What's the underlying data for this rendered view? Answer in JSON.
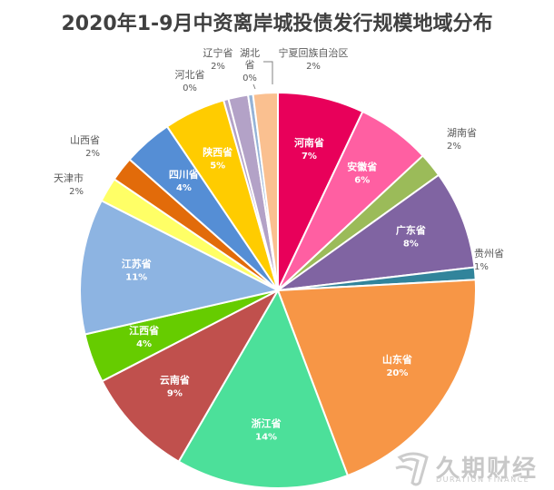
{
  "chart_data": {
    "type": "pie",
    "title": "2020年1-9月中资离岸城投债发行规模地域分布",
    "start_angle_deg": 0,
    "direction": "clockwise",
    "slices": [
      {
        "name": "河南省",
        "label": "7%",
        "value": 7,
        "color": "#E8005A",
        "label_inside": true
      },
      {
        "name": "安徽省",
        "label": "6%",
        "value": 6,
        "color": "#FF5FA2",
        "label_inside": true
      },
      {
        "name": "湖南省",
        "label": "2%",
        "value": 2,
        "color": "#9BBB59",
        "label_inside": false
      },
      {
        "name": "广东省",
        "label": "8%",
        "value": 8,
        "color": "#8064A2",
        "label_inside": true
      },
      {
        "name": "贵州省",
        "label": "1%",
        "value": 1,
        "color": "#31849B",
        "label_inside": false
      },
      {
        "name": "山东省",
        "label": "20%",
        "value": 20,
        "color": "#F79646",
        "label_inside": true
      },
      {
        "name": "浙江省",
        "label": "14%",
        "value": 14,
        "color": "#4CE09A",
        "label_inside": true
      },
      {
        "name": "云南省",
        "label": "9%",
        "value": 9,
        "color": "#C0504D",
        "label_inside": true
      },
      {
        "name": "江西省",
        "label": "4%",
        "value": 4,
        "color": "#66CC00",
        "label_inside": true
      },
      {
        "name": "江苏省",
        "label": "11%",
        "value": 11,
        "color": "#8DB4E2",
        "label_inside": true
      },
      {
        "name": "天津市",
        "label": "2%",
        "value": 2,
        "color": "#FFFF66",
        "label_inside": false
      },
      {
        "name": "山西省",
        "label": "2%",
        "value": 2,
        "color": "#E26B0A",
        "label_inside": false
      },
      {
        "name": "四川省",
        "label": "4%",
        "value": 4,
        "color": "#558ED5",
        "label_inside": true
      },
      {
        "name": "陕西省",
        "label": "5%",
        "value": 5,
        "color": "#FFCC00",
        "label_inside": true
      },
      {
        "name": "河北省",
        "label": "0%",
        "value": 0.4,
        "color": "#B3A2C7",
        "label_inside": false
      },
      {
        "name": "辽宁省",
        "label": "2%",
        "value": 1.6,
        "color": "#B3A2C7",
        "label_inside": false
      },
      {
        "name": "湖北省",
        "label": "0%",
        "value": 0.4,
        "color": "#95B3D7",
        "label_inside": false
      },
      {
        "name": "宁夏回族自治区",
        "label": "2%",
        "value": 2,
        "color": "#FAC090",
        "label_inside": false
      }
    ]
  },
  "watermark": {
    "main": "久期财经",
    "sub": "DURATION FINANCE",
    "icon": "wave-logo-icon"
  }
}
